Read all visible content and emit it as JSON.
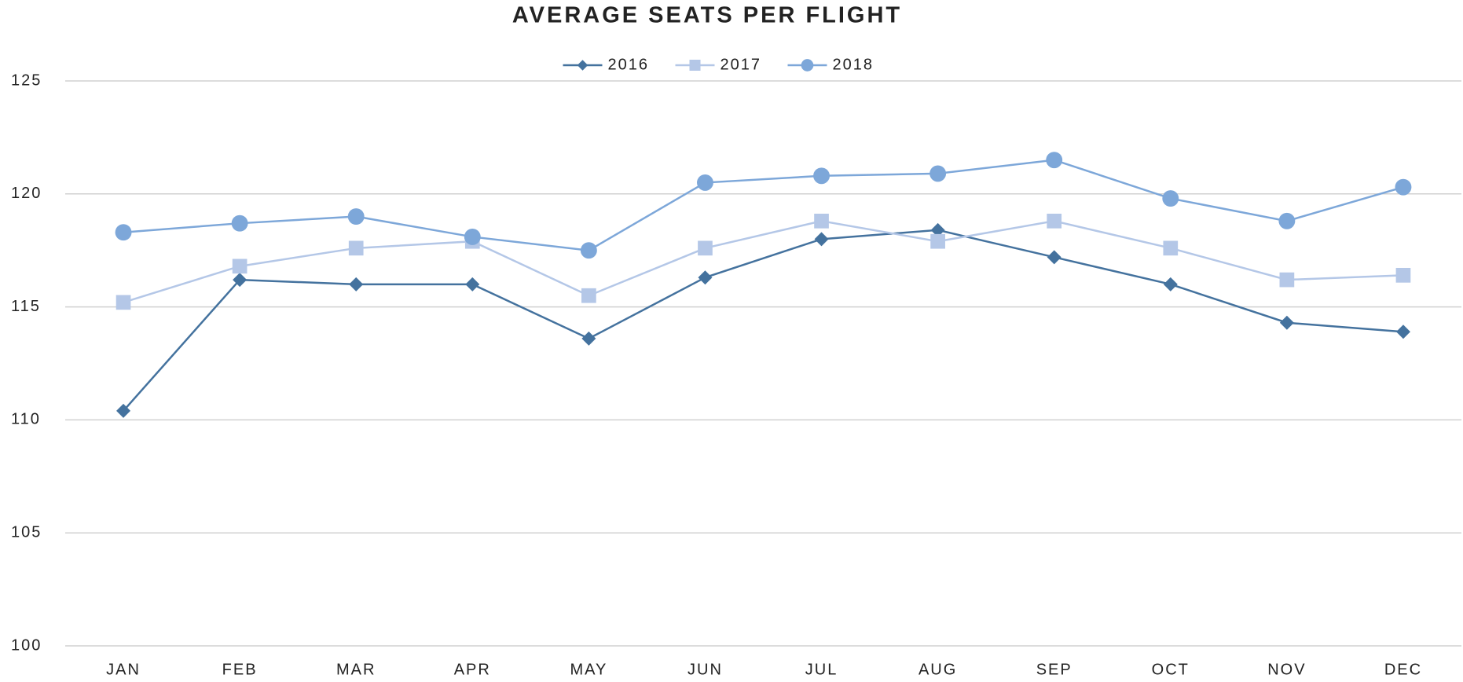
{
  "chart_data": {
    "type": "line",
    "title": "AVERAGE SEATS PER FLIGHT",
    "categories": [
      "JAN",
      "FEB",
      "MAR",
      "APR",
      "MAY",
      "JUN",
      "JUL",
      "AUG",
      "SEP",
      "OCT",
      "NOV",
      "DEC"
    ],
    "series": [
      {
        "name": "2016",
        "color": "#44729e",
        "marker": "diamond",
        "values": [
          110.4,
          116.2,
          116.0,
          116.0,
          113.6,
          116.3,
          118.0,
          118.4,
          117.2,
          116.0,
          114.3,
          113.9
        ]
      },
      {
        "name": "2017",
        "color": "#b4c7e7",
        "marker": "square",
        "values": [
          115.2,
          116.8,
          117.6,
          117.9,
          115.5,
          117.6,
          118.8,
          117.9,
          118.8,
          117.6,
          116.2,
          116.4
        ]
      },
      {
        "name": "2018",
        "color": "#7da7d9",
        "marker": "circle",
        "values": [
          118.3,
          118.7,
          119.0,
          118.1,
          117.5,
          120.5,
          120.8,
          120.9,
          121.5,
          119.8,
          118.8,
          120.3
        ]
      }
    ],
    "ylim": [
      100,
      125
    ],
    "yticks": [
      100,
      105,
      110,
      115,
      120,
      125
    ],
    "grid": true,
    "legend": "top"
  }
}
